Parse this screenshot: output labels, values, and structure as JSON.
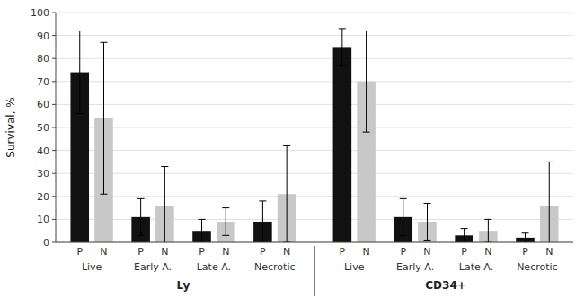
{
  "chart_data": {
    "type": "bar",
    "ylabel": "Survival, %",
    "ylim": [
      0,
      100
    ],
    "yticks": [
      0,
      10,
      20,
      30,
      40,
      50,
      60,
      70,
      80,
      90,
      100
    ],
    "grid": true,
    "cell_types": [
      "Ly",
      "CD34+"
    ],
    "categories": [
      "Live",
      "Early A.",
      "Late A.",
      "Necrotic",
      "Live",
      "Early A.",
      "Late A.",
      "Necrotic"
    ],
    "series": [
      {
        "name": "P",
        "color": "#111111",
        "values": [
          74,
          11,
          5,
          9,
          85,
          11,
          3,
          2
        ],
        "errors": [
          18,
          8,
          5,
          9,
          8,
          8,
          3,
          2
        ]
      },
      {
        "name": "N",
        "color": "#c8c8c8",
        "values": [
          54,
          16,
          9,
          21,
          70,
          9,
          5,
          16
        ],
        "errors": [
          33,
          17,
          6,
          21,
          22,
          8,
          5,
          19
        ]
      }
    ]
  }
}
